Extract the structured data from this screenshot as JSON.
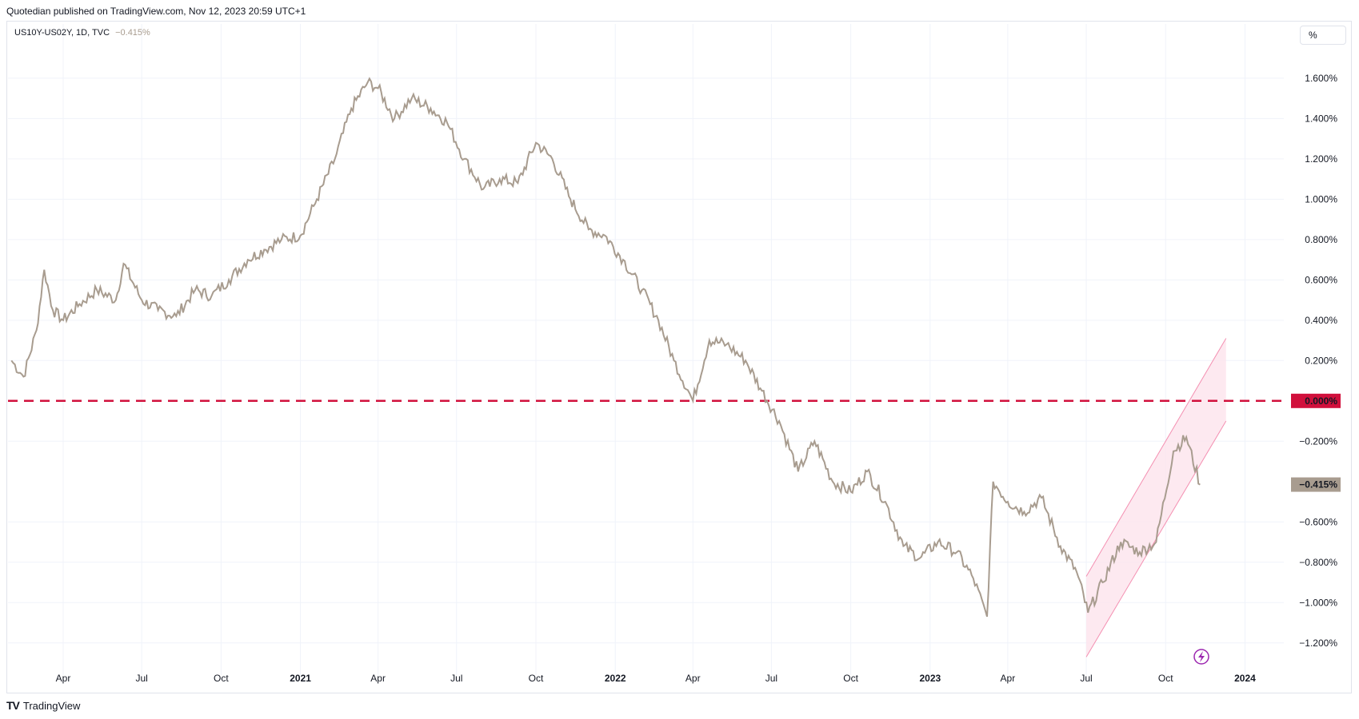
{
  "header": {
    "published": "Quotedian published on TradingView.com, Nov 12, 2023 20:59 UTC+1"
  },
  "legend": {
    "symbol": "US10Y-US02Y, 1D, TVC",
    "last_value": "−0.415%"
  },
  "scale_button": "%",
  "footer": {
    "logo": "TV",
    "brand": "TradingView"
  },
  "colors": {
    "series": "#a89c8f",
    "zero_line": "#d1103c",
    "channel_fill": "#fce4ec",
    "channel_line": "#f48fb1",
    "grid": "#f0f3fa"
  },
  "chart_data": {
    "type": "line",
    "title": "",
    "xlabel": "",
    "ylabel": "",
    "series": [
      {
        "name": "US10Y-US02Y",
        "x": [
          "2020-02-01",
          "2020-02-15",
          "2020-03-01",
          "2020-03-10",
          "2020-03-20",
          "2020-04-01",
          "2020-04-20",
          "2020-05-10",
          "2020-06-01",
          "2020-06-10",
          "2020-07-01",
          "2020-07-20",
          "2020-08-10",
          "2020-09-01",
          "2020-09-20",
          "2020-10-10",
          "2020-11-01",
          "2020-11-20",
          "2020-12-10",
          "2021-01-01",
          "2021-01-20",
          "2021-02-10",
          "2021-03-01",
          "2021-03-20",
          "2021-04-01",
          "2021-04-20",
          "2021-05-10",
          "2021-06-01",
          "2021-06-20",
          "2021-07-10",
          "2021-08-01",
          "2021-08-20",
          "2021-09-10",
          "2021-10-01",
          "2021-10-20",
          "2021-11-10",
          "2021-12-01",
          "2021-12-20",
          "2022-01-10",
          "2022-02-01",
          "2022-02-20",
          "2022-03-10",
          "2022-04-01",
          "2022-04-20",
          "2022-05-10",
          "2022-06-01",
          "2022-06-20",
          "2022-07-10",
          "2022-08-01",
          "2022-08-20",
          "2022-09-10",
          "2022-10-01",
          "2022-10-20",
          "2022-11-10",
          "2022-12-01",
          "2022-12-20",
          "2023-01-10",
          "2023-02-01",
          "2023-02-20",
          "2023-03-08",
          "2023-03-15",
          "2023-04-01",
          "2023-04-20",
          "2023-05-10",
          "2023-06-01",
          "2023-06-20",
          "2023-07-03",
          "2023-07-20",
          "2023-08-10",
          "2023-09-01",
          "2023-09-20",
          "2023-10-10",
          "2023-10-25",
          "2023-11-10"
        ],
        "values": [
          0.2,
          0.12,
          0.35,
          0.65,
          0.45,
          0.4,
          0.48,
          0.55,
          0.5,
          0.68,
          0.5,
          0.45,
          0.42,
          0.55,
          0.52,
          0.6,
          0.7,
          0.75,
          0.8,
          0.82,
          1.0,
          1.2,
          1.45,
          1.58,
          1.55,
          1.4,
          1.5,
          1.45,
          1.38,
          1.2,
          1.05,
          1.1,
          1.08,
          1.28,
          1.2,
          1.0,
          0.85,
          0.82,
          0.7,
          0.55,
          0.4,
          0.2,
          0.0,
          0.3,
          0.28,
          0.2,
          0.05,
          -0.1,
          -0.35,
          -0.2,
          -0.4,
          -0.45,
          -0.35,
          -0.5,
          -0.72,
          -0.78,
          -0.7,
          -0.75,
          -0.88,
          -1.07,
          -0.4,
          -0.5,
          -0.55,
          -0.48,
          -0.72,
          -0.85,
          -1.05,
          -0.9,
          -0.7,
          -0.75,
          -0.7,
          -0.25,
          -0.18,
          -0.415
        ]
      }
    ],
    "y_ticks": [
      "1.600%",
      "1.400%",
      "1.200%",
      "1.000%",
      "0.800%",
      "0.600%",
      "0.400%",
      "0.200%",
      "0.000%",
      "−0.200%",
      "−0.415%",
      "−0.600%",
      "−0.800%",
      "−1.000%",
      "−1.200%"
    ],
    "x_ticks": [
      {
        "label": "Apr",
        "date": "2020-04-01",
        "year": false
      },
      {
        "label": "Jul",
        "date": "2020-07-01",
        "year": false
      },
      {
        "label": "Oct",
        "date": "2020-10-01",
        "year": false
      },
      {
        "label": "2021",
        "date": "2021-01-01",
        "year": true
      },
      {
        "label": "Apr",
        "date": "2021-04-01",
        "year": false
      },
      {
        "label": "Jul",
        "date": "2021-07-01",
        "year": false
      },
      {
        "label": "Oct",
        "date": "2021-10-01",
        "year": false
      },
      {
        "label": "2022",
        "date": "2022-01-01",
        "year": true
      },
      {
        "label": "Apr",
        "date": "2022-04-01",
        "year": false
      },
      {
        "label": "Jul",
        "date": "2022-07-01",
        "year": false
      },
      {
        "label": "Oct",
        "date": "2022-10-01",
        "year": false
      },
      {
        "label": "2023",
        "date": "2023-01-01",
        "year": true
      },
      {
        "label": "Apr",
        "date": "2023-04-01",
        "year": false
      },
      {
        "label": "Jul",
        "date": "2023-07-01",
        "year": false
      },
      {
        "label": "Oct",
        "date": "2023-10-01",
        "year": false
      },
      {
        "label": "2024",
        "date": "2024-01-01",
        "year": true
      }
    ],
    "ylim": [
      -1.3,
      1.75
    ],
    "xlim": [
      "2020-01-28",
      "2024-02-15"
    ],
    "zero_line": {
      "value": 0,
      "label": "0.000%"
    },
    "channel": {
      "start": "2023-07-01",
      "end": "2023-12-10",
      "lower": [
        -1.27,
        -0.1
      ],
      "upper": [
        -0.87,
        0.31
      ]
    },
    "grid": true,
    "legend_position": "top-left"
  }
}
